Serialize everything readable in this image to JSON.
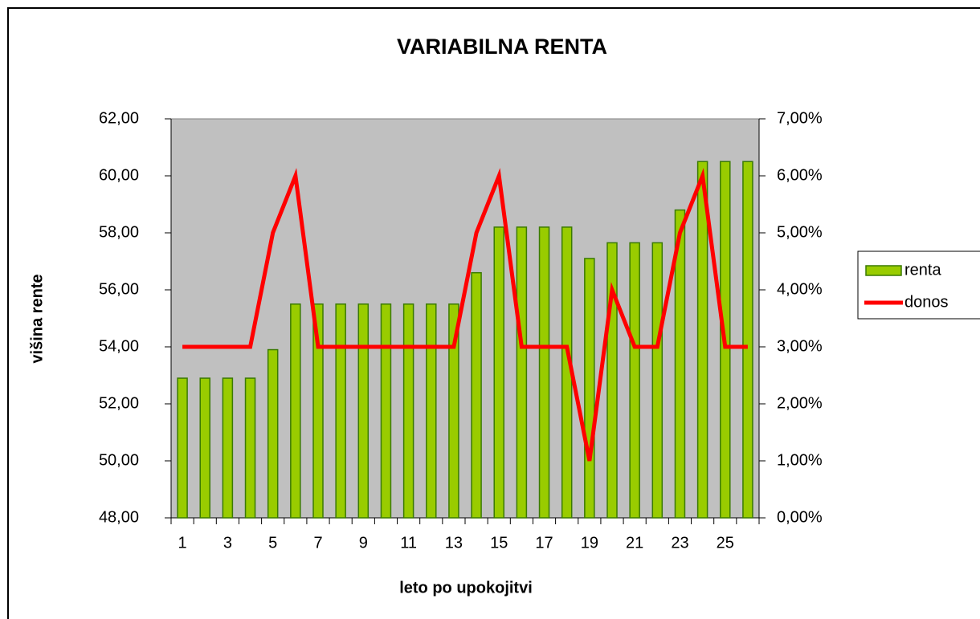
{
  "chart_data": {
    "type": "bar-line",
    "title": "VARIABILNA RENTA",
    "ylabel": "višina rente",
    "xlabel": "leto po upokojitvi",
    "categories": [
      "1",
      null,
      "3",
      null,
      "5",
      null,
      "7",
      null,
      "9",
      null,
      "11",
      null,
      "13",
      null,
      "15",
      null,
      "17",
      null,
      "19",
      null,
      "21",
      null,
      "23",
      null,
      "25",
      null
    ],
    "series": [
      {
        "name": "renta",
        "type": "bar",
        "color": "#99cc00",
        "axis": "y",
        "values": [
          52.9,
          52.9,
          52.9,
          52.9,
          53.9,
          55.5,
          55.5,
          55.5,
          55.5,
          55.5,
          55.5,
          55.5,
          55.5,
          56.6,
          58.2,
          58.2,
          58.2,
          58.2,
          57.1,
          57.65,
          57.65,
          57.65,
          58.8,
          60.5,
          60.5,
          60.5
        ]
      },
      {
        "name": "donos",
        "type": "line",
        "color": "#ff0000",
        "axis": "y2",
        "values": [
          3,
          3,
          3,
          3,
          5,
          6,
          3,
          3,
          3,
          3,
          3,
          3,
          3,
          5,
          6,
          3,
          3,
          3,
          1,
          4,
          3,
          3,
          5,
          6,
          3,
          3
        ]
      }
    ],
    "ylim": [
      48,
      62
    ],
    "yticks": [
      {
        "value": 48,
        "label": "48,00"
      },
      {
        "value": 50,
        "label": "50,00"
      },
      {
        "value": 52,
        "label": "52,00"
      },
      {
        "value": 54,
        "label": "54,00"
      },
      {
        "value": 56,
        "label": "56,00"
      },
      {
        "value": 58,
        "label": "58,00"
      },
      {
        "value": 60,
        "label": "60,00"
      },
      {
        "value": 62,
        "label": "62,00"
      }
    ],
    "y2lim": [
      0,
      7
    ],
    "y2ticks": [
      {
        "value": 0,
        "label": "0,00%"
      },
      {
        "value": 1,
        "label": "1,00%"
      },
      {
        "value": 2,
        "label": "2,00%"
      },
      {
        "value": 3,
        "label": "3,00%"
      },
      {
        "value": 4,
        "label": "4,00%"
      },
      {
        "value": 5,
        "label": "5,00%"
      },
      {
        "value": 6,
        "label": "6,00%"
      },
      {
        "value": 7,
        "label": "7,00%"
      }
    ],
    "legend": "right",
    "grid": false
  }
}
